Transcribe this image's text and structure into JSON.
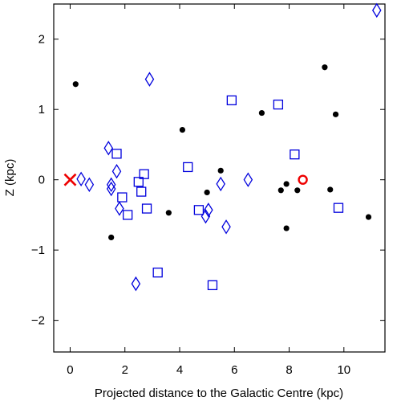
{
  "chart_data": {
    "type": "scatter",
    "title": "",
    "xlabel": "Projected distance to the Galactic Centre (kpc)",
    "ylabel": "Z (kpc)",
    "xlim": [
      -0.6,
      11.5
    ],
    "ylim": [
      -2.45,
      2.5
    ],
    "grid": false,
    "legend": "none",
    "x_ticks": [
      0,
      2,
      4,
      6,
      8,
      10
    ],
    "x_tick_labels": [
      "0",
      "2",
      "4",
      "6",
      "8",
      "10"
    ],
    "y_ticks": [
      -2,
      -1,
      0,
      1,
      2
    ],
    "y_tick_labels": [
      "−2",
      "−1",
      "0",
      "1",
      "2"
    ],
    "series": [
      {
        "marker": "filled-circle",
        "color": "#000000",
        "points": [
          [
            0.2,
            1.36
          ],
          [
            1.5,
            -0.82
          ],
          [
            3.6,
            -0.47
          ],
          [
            4.1,
            0.71
          ],
          [
            5.0,
            -0.18
          ],
          [
            5.5,
            0.13
          ],
          [
            7.0,
            0.95
          ],
          [
            7.7,
            -0.15
          ],
          [
            7.9,
            -0.06
          ],
          [
            7.9,
            -0.69
          ],
          [
            8.3,
            -0.15
          ],
          [
            9.3,
            1.6
          ],
          [
            9.5,
            -0.14
          ],
          [
            9.7,
            0.93
          ],
          [
            10.9,
            -0.53
          ]
        ]
      },
      {
        "marker": "open-square",
        "color": "#0000dd",
        "points": [
          [
            1.7,
            0.37
          ],
          [
            1.9,
            -0.25
          ],
          [
            2.1,
            -0.5
          ],
          [
            2.5,
            -0.03
          ],
          [
            2.6,
            -0.17
          ],
          [
            2.7,
            0.08
          ],
          [
            2.8,
            -0.41
          ],
          [
            3.2,
            -1.32
          ],
          [
            4.3,
            0.18
          ],
          [
            4.7,
            -0.43
          ],
          [
            5.2,
            -1.5
          ],
          [
            5.9,
            1.13
          ],
          [
            7.6,
            1.07
          ],
          [
            8.2,
            0.36
          ],
          [
            9.8,
            -0.4
          ]
        ]
      },
      {
        "marker": "open-diamond",
        "color": "#0000dd",
        "points": [
          [
            0.4,
            0.01
          ],
          [
            0.7,
            -0.07
          ],
          [
            1.4,
            0.45
          ],
          [
            1.5,
            -0.07
          ],
          [
            1.5,
            -0.13
          ],
          [
            1.7,
            0.12
          ],
          [
            1.8,
            -0.41
          ],
          [
            2.4,
            -1.48
          ],
          [
            2.9,
            1.43
          ],
          [
            4.95,
            -0.52
          ],
          [
            5.05,
            -0.43
          ],
          [
            5.5,
            -0.06
          ],
          [
            5.7,
            -0.67
          ],
          [
            6.5,
            0.0
          ],
          [
            11.2,
            2.41
          ]
        ]
      },
      {
        "marker": "cross",
        "color": "#ee0000",
        "points": [
          [
            0.0,
            0.0
          ]
        ]
      },
      {
        "marker": "open-circle",
        "color": "#ee0000",
        "points": [
          [
            8.5,
            0.0
          ]
        ]
      }
    ]
  }
}
